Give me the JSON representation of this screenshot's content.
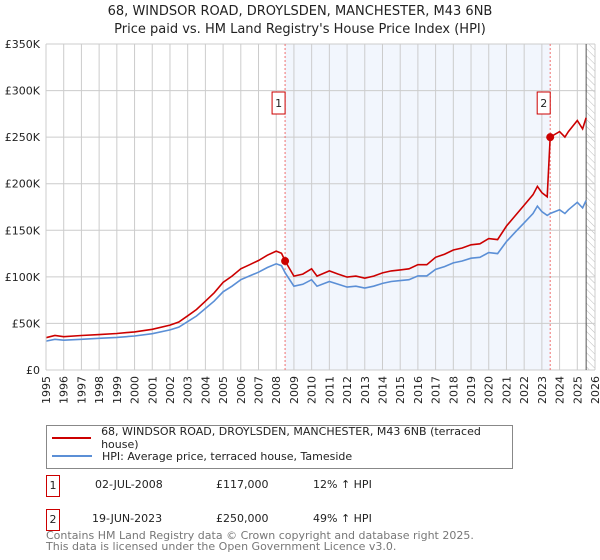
{
  "title": "68, WINDSOR ROAD, DROYLSDEN, MANCHESTER, M43 6NB",
  "subtitle": "Price paid vs. HM Land Registry's House Price Index (HPI)",
  "chart_data": {
    "type": "line",
    "xlim": [
      1995,
      2026
    ],
    "ylim": [
      0,
      350000
    ],
    "yticks": [
      0,
      50000,
      100000,
      150000,
      200000,
      250000,
      300000,
      350000
    ],
    "ytick_labels": [
      "£0",
      "£50K",
      "£100K",
      "£150K",
      "£200K",
      "£250K",
      "£300K",
      "£350K"
    ],
    "xticks": [
      "1995",
      "1996",
      "1997",
      "1998",
      "1999",
      "2000",
      "2001",
      "2002",
      "2003",
      "2004",
      "2005",
      "2006",
      "2007",
      "2008",
      "2009",
      "2010",
      "2011",
      "2012",
      "2013",
      "2014",
      "2015",
      "2016",
      "2017",
      "2018",
      "2019",
      "2020",
      "2021",
      "2022",
      "2023",
      "2024",
      "2025",
      "2026"
    ],
    "grid": true,
    "x": [
      1995,
      1995.5,
      1996,
      1997,
      1998,
      1999,
      2000,
      2001,
      2002,
      2002.5,
      2003,
      2003.5,
      2004,
      2004.5,
      2005,
      2005.5,
      2006,
      2006.5,
      2007,
      2007.5,
      2008,
      2008.3,
      2008.5,
      2009,
      2009.5,
      2010,
      2010.3,
      2011,
      2011.5,
      2012,
      2012.5,
      2013,
      2013.5,
      2014,
      2014.5,
      2015,
      2015.5,
      2016,
      2016.5,
      2017,
      2017.5,
      2018,
      2018.5,
      2019,
      2019.5,
      2020,
      2020.5,
      2021,
      2021.5,
      2022,
      2022.5,
      2022.75,
      2023,
      2023.3,
      2023.47,
      2024,
      2024.3,
      2024.5,
      2025,
      2025.3,
      2025.5
    ],
    "series": [
      {
        "name": "68, WINDSOR ROAD, DROYLSDEN, MANCHESTER, M43 6NB (terraced house)",
        "color": "#cc0000",
        "values": [
          34700,
          37000,
          35800,
          37000,
          38000,
          39200,
          40900,
          43700,
          48200,
          51500,
          58200,
          65000,
          73900,
          82900,
          94100,
          100800,
          108600,
          113100,
          117600,
          123200,
          127700,
          125400,
          117000,
          100800,
          103000,
          108600,
          100800,
          106400,
          103000,
          99700,
          100800,
          98600,
          100800,
          104200,
          106400,
          107500,
          108600,
          113100,
          113100,
          121000,
          124300,
          128800,
          131000,
          134400,
          135500,
          141100,
          140000,
          154600,
          165800,
          177000,
          188200,
          197100,
          190400,
          185900,
          250000,
          256000,
          250000,
          256000,
          267900,
          258900,
          270800
        ]
      },
      {
        "name": "HPI: Average price, terraced house, Tameside",
        "color": "#5b8fd6",
        "values": [
          31000,
          33000,
          32000,
          33000,
          34000,
          35000,
          36500,
          39000,
          43000,
          46000,
          52000,
          58000,
          66000,
          74000,
          84000,
          90000,
          97000,
          101000,
          105000,
          110000,
          114000,
          112000,
          104500,
          90000,
          92000,
          97000,
          90000,
          95000,
          92000,
          89000,
          90000,
          88000,
          90000,
          93000,
          95000,
          96000,
          97000,
          101000,
          101000,
          108000,
          111000,
          115000,
          117000,
          120000,
          121000,
          126000,
          125000,
          138000,
          148000,
          158000,
          168000,
          176000,
          170000,
          166000,
          168000,
          172000,
          168000,
          172000,
          180000,
          174000,
          182000
        ]
      }
    ],
    "transactions": [
      {
        "label": "1",
        "x": 2008.5,
        "y": 117000
      },
      {
        "label": "2",
        "x": 2023.47,
        "y": 250000
      }
    ],
    "shaded_range": [
      2008.5,
      2023.47
    ],
    "hatched_from": 2025.5,
    "legend_position": "below"
  },
  "legend": {
    "items": [
      {
        "label": "68, WINDSOR ROAD, DROYLSDEN, MANCHESTER, M43 6NB (terraced house)",
        "color": "#cc0000"
      },
      {
        "label": "HPI: Average price, terraced house, Tameside",
        "color": "#5b8fd6"
      }
    ]
  },
  "transactions_table": [
    {
      "num": "1",
      "date": "02-JUL-2008",
      "price": "£117,000",
      "hpi": "12% ↑ HPI"
    },
    {
      "num": "2",
      "date": "19-JUN-2023",
      "price": "£250,000",
      "hpi": "49% ↑ HPI"
    }
  ],
  "footer": {
    "line1": "Contains HM Land Registry data © Crown copyright and database right 2025.",
    "line2": "This data is licensed under the Open Government Licence v3.0."
  }
}
